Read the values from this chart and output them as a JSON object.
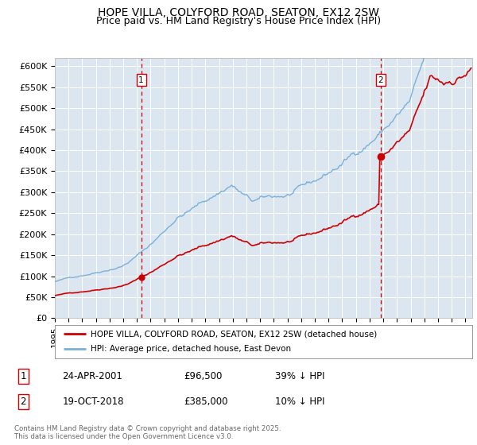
{
  "title": "HOPE VILLA, COLYFORD ROAD, SEATON, EX12 2SW",
  "subtitle": "Price paid vs. HM Land Registry's House Price Index (HPI)",
  "ylim": [
    0,
    620000
  ],
  "yticks": [
    0,
    50000,
    100000,
    150000,
    200000,
    250000,
    300000,
    350000,
    400000,
    450000,
    500000,
    550000,
    600000
  ],
  "ytick_labels": [
    "£0",
    "£50K",
    "£100K",
    "£150K",
    "£200K",
    "£250K",
    "£300K",
    "£350K",
    "£400K",
    "£450K",
    "£500K",
    "£550K",
    "£600K"
  ],
  "xlim_start": 1995.0,
  "xlim_end": 2025.5,
  "hpi_color": "#7ab0d8",
  "price_color": "#cc0000",
  "vline_color": "#cc0000",
  "plot_bg": "#dce6f1",
  "event1_x": 2001.31,
  "event1_y": 96500,
  "event2_x": 2018.8,
  "event2_y": 385000,
  "legend_line1": "HOPE VILLA, COLYFORD ROAD, SEATON, EX12 2SW (detached house)",
  "legend_line2": "HPI: Average price, detached house, East Devon",
  "table_row1": [
    "1",
    "24-APR-2001",
    "£96,500",
    "39% ↓ HPI"
  ],
  "table_row2": [
    "2",
    "19-OCT-2018",
    "£385,000",
    "10% ↓ HPI"
  ],
  "footer": "Contains HM Land Registry data © Crown copyright and database right 2025.\nThis data is licensed under the Open Government Licence v3.0.",
  "title_fontsize": 10,
  "subtitle_fontsize": 9,
  "tick_fontsize": 8,
  "grid_color": "#ffffff"
}
